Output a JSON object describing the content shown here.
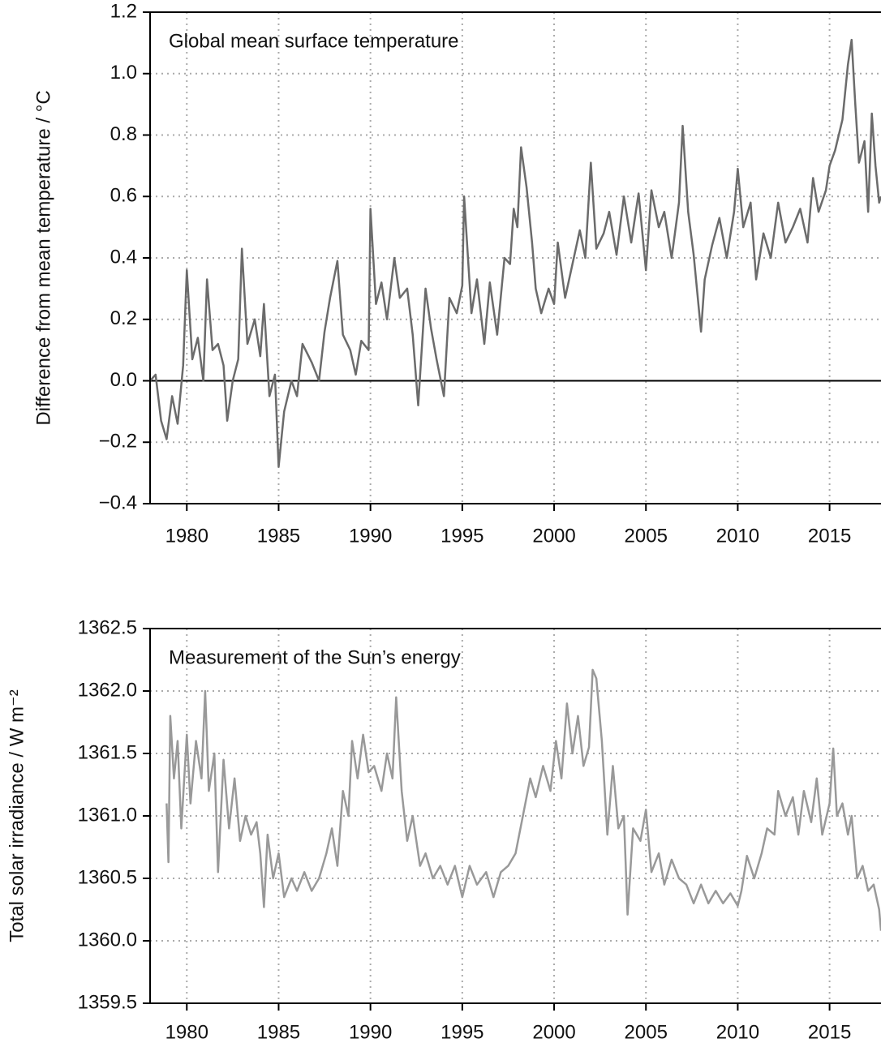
{
  "chart_data": [
    {
      "type": "line",
      "title": "Global mean surface temperature",
      "ylabel": "Difference from mean temperature / °C",
      "xlim": [
        1978,
        2017.8
      ],
      "xticks": [
        1980,
        1985,
        1990,
        1995,
        2000,
        2005,
        2010,
        2015
      ],
      "ylim": [
        -0.4,
        1.2
      ],
      "yticks": [
        {
          "value": -0.4,
          "label": "−0.4"
        },
        {
          "value": -0.2,
          "label": "−0.2"
        },
        {
          "value": 0,
          "label": "0.0"
        },
        0.2,
        0.4,
        0.6,
        0.8,
        {
          "value": 1,
          "label": "1.0"
        },
        1.2
      ],
      "grid": true,
      "baseline": 0,
      "series": [
        {
          "color": "#6b6b6b",
          "x": [
            1978.0,
            1978.3,
            1978.6,
            1978.9,
            1979.2,
            1979.5,
            1979.8,
            1980.0,
            1980.3,
            1980.6,
            1980.9,
            1981.1,
            1981.4,
            1981.7,
            1982.0,
            1982.2,
            1982.5,
            1982.8,
            1983.0,
            1983.3,
            1983.7,
            1984.0,
            1984.2,
            1984.5,
            1984.8,
            1985.0,
            1985.3,
            1985.7,
            1986.0,
            1986.3,
            1986.8,
            1987.2,
            1987.5,
            1987.8,
            1988.2,
            1988.5,
            1988.9,
            1989.2,
            1989.5,
            1989.9,
            1990.0,
            1990.3,
            1990.6,
            1990.9,
            1991.3,
            1991.6,
            1992.0,
            1992.3,
            1992.6,
            1993.0,
            1993.3,
            1993.6,
            1994.0,
            1994.3,
            1994.7,
            1995.0,
            1995.1,
            1995.5,
            1995.8,
            1996.2,
            1996.5,
            1996.9,
            1997.3,
            1997.6,
            1997.8,
            1998.0,
            1998.2,
            1998.5,
            1998.8,
            1999.0,
            1999.3,
            1999.7,
            2000.0,
            2000.2,
            2000.6,
            2001.0,
            2001.4,
            2001.7,
            2002.0,
            2002.3,
            2002.7,
            2003.0,
            2003.4,
            2003.8,
            2004.2,
            2004.6,
            2005.0,
            2005.3,
            2005.7,
            2006.0,
            2006.4,
            2006.8,
            2007.0,
            2007.3,
            2007.6,
            2008.0,
            2008.2,
            2008.6,
            2009.0,
            2009.4,
            2009.8,
            2010.0,
            2010.3,
            2010.7,
            2011.0,
            2011.4,
            2011.8,
            2012.2,
            2012.6,
            2013.0,
            2013.4,
            2013.8,
            2014.1,
            2014.4,
            2014.8,
            2015.0,
            2015.3,
            2015.7,
            2016.0,
            2016.2,
            2016.4,
            2016.6,
            2016.9,
            2017.1,
            2017.3,
            2017.5,
            2017.7,
            2017.8
          ],
          "values": [
            0.0,
            0.02,
            -0.13,
            -0.19,
            -0.05,
            -0.14,
            0.05,
            0.36,
            0.07,
            0.14,
            0.0,
            0.33,
            0.1,
            0.12,
            0.05,
            -0.13,
            0.0,
            0.07,
            0.43,
            0.12,
            0.2,
            0.08,
            0.25,
            -0.05,
            0.02,
            -0.28,
            -0.1,
            0.0,
            -0.05,
            0.12,
            0.06,
            0.0,
            0.16,
            0.27,
            0.39,
            0.15,
            0.1,
            0.02,
            0.13,
            0.1,
            0.56,
            0.25,
            0.32,
            0.2,
            0.4,
            0.27,
            0.3,
            0.15,
            -0.08,
            0.3,
            0.17,
            0.07,
            -0.05,
            0.27,
            0.22,
            0.31,
            0.6,
            0.22,
            0.33,
            0.12,
            0.32,
            0.15,
            0.4,
            0.38,
            0.56,
            0.5,
            0.76,
            0.63,
            0.45,
            0.3,
            0.22,
            0.3,
            0.25,
            0.45,
            0.27,
            0.38,
            0.49,
            0.4,
            0.71,
            0.43,
            0.48,
            0.55,
            0.41,
            0.6,
            0.45,
            0.61,
            0.36,
            0.62,
            0.5,
            0.55,
            0.4,
            0.58,
            0.83,
            0.55,
            0.41,
            0.16,
            0.33,
            0.44,
            0.53,
            0.4,
            0.55,
            0.69,
            0.5,
            0.58,
            0.33,
            0.48,
            0.4,
            0.58,
            0.45,
            0.5,
            0.56,
            0.45,
            0.66,
            0.55,
            0.62,
            0.7,
            0.75,
            0.85,
            1.03,
            1.11,
            0.9,
            0.71,
            0.78,
            0.55,
            0.87,
            0.7,
            0.58,
            0.6
          ]
        }
      ]
    },
    {
      "type": "line",
      "title": "Measurement of the Sun’s energy",
      "ylabel": "Total solar irradiance / W m⁻²",
      "xlim": [
        1978,
        2017.8
      ],
      "xticks": [
        1980,
        1985,
        1990,
        1995,
        2000,
        2005,
        2010,
        2015
      ],
      "ylim": [
        1359.5,
        1362.5
      ],
      "yticks": [
        1359.5,
        {
          "value": 1360,
          "label": "1360.0"
        },
        1360.5,
        {
          "value": 1361,
          "label": "1361.0"
        },
        1361.5,
        {
          "value": 1362,
          "label": "1362.0"
        },
        1362.5
      ],
      "grid": true,
      "series": [
        {
          "color": "#999999",
          "x": [
            1978.9,
            1979.0,
            1979.1,
            1979.3,
            1979.5,
            1979.7,
            1980.0,
            1980.2,
            1980.5,
            1980.8,
            1981.0,
            1981.2,
            1981.5,
            1981.7,
            1982.0,
            1982.3,
            1982.6,
            1982.9,
            1983.2,
            1983.5,
            1983.8,
            1984.0,
            1984.2,
            1984.4,
            1984.7,
            1985.0,
            1985.3,
            1985.7,
            1986.0,
            1986.4,
            1986.8,
            1987.2,
            1987.6,
            1987.9,
            1988.2,
            1988.5,
            1988.8,
            1989.0,
            1989.3,
            1989.6,
            1989.9,
            1990.2,
            1990.6,
            1990.9,
            1991.2,
            1991.4,
            1991.7,
            1992.0,
            1992.3,
            1992.7,
            1993.0,
            1993.4,
            1993.8,
            1994.2,
            1994.6,
            1995.0,
            1995.4,
            1995.8,
            1996.3,
            1996.7,
            1997.1,
            1997.5,
            1997.9,
            1998.3,
            1998.7,
            1999.0,
            1999.4,
            1999.8,
            2000.1,
            2000.4,
            2000.7,
            2001.0,
            2001.3,
            2001.6,
            2001.9,
            2002.1,
            2002.3,
            2002.6,
            2002.9,
            2003.2,
            2003.5,
            2003.8,
            2004.0,
            2004.3,
            2004.7,
            2005.0,
            2005.3,
            2005.7,
            2006.0,
            2006.4,
            2006.8,
            2007.2,
            2007.6,
            2008.0,
            2008.4,
            2008.8,
            2009.2,
            2009.6,
            2010.0,
            2010.2,
            2010.5,
            2010.9,
            2011.3,
            2011.6,
            2012.0,
            2012.2,
            2012.6,
            2013.0,
            2013.3,
            2013.6,
            2014.0,
            2014.3,
            2014.6,
            2015.0,
            2015.2,
            2015.4,
            2015.7,
            2016.0,
            2016.2,
            2016.5,
            2016.8,
            2017.1,
            2017.4,
            2017.7,
            2017.8
          ],
          "values": [
            1361.1,
            1360.63,
            1361.8,
            1361.3,
            1361.6,
            1360.9,
            1361.65,
            1361.1,
            1361.6,
            1361.3,
            1362.0,
            1361.2,
            1361.5,
            1360.55,
            1361.45,
            1360.9,
            1361.3,
            1360.8,
            1361.0,
            1360.85,
            1360.95,
            1360.7,
            1360.27,
            1360.85,
            1360.5,
            1360.7,
            1360.35,
            1360.5,
            1360.4,
            1360.55,
            1360.4,
            1360.5,
            1360.7,
            1360.9,
            1360.6,
            1361.2,
            1361.0,
            1361.6,
            1361.3,
            1361.65,
            1361.35,
            1361.4,
            1361.2,
            1361.5,
            1361.3,
            1361.95,
            1361.2,
            1360.8,
            1361.0,
            1360.6,
            1360.7,
            1360.5,
            1360.6,
            1360.45,
            1360.6,
            1360.35,
            1360.6,
            1360.45,
            1360.55,
            1360.35,
            1360.55,
            1360.6,
            1360.7,
            1361.0,
            1361.3,
            1361.15,
            1361.4,
            1361.2,
            1361.6,
            1361.3,
            1361.9,
            1361.5,
            1361.8,
            1361.4,
            1361.55,
            1362.17,
            1362.1,
            1361.6,
            1360.85,
            1361.4,
            1360.9,
            1361.0,
            1360.21,
            1360.9,
            1360.8,
            1361.05,
            1360.55,
            1360.7,
            1360.45,
            1360.65,
            1360.5,
            1360.45,
            1360.3,
            1360.45,
            1360.3,
            1360.4,
            1360.3,
            1360.38,
            1360.28,
            1360.4,
            1360.68,
            1360.5,
            1360.7,
            1360.9,
            1360.85,
            1361.2,
            1361.0,
            1361.15,
            1360.85,
            1361.2,
            1360.95,
            1361.3,
            1360.85,
            1361.1,
            1361.54,
            1361.0,
            1361.1,
            1360.85,
            1361.0,
            1360.5,
            1360.6,
            1360.4,
            1360.45,
            1360.25,
            1360.08
          ]
        }
      ]
    }
  ]
}
